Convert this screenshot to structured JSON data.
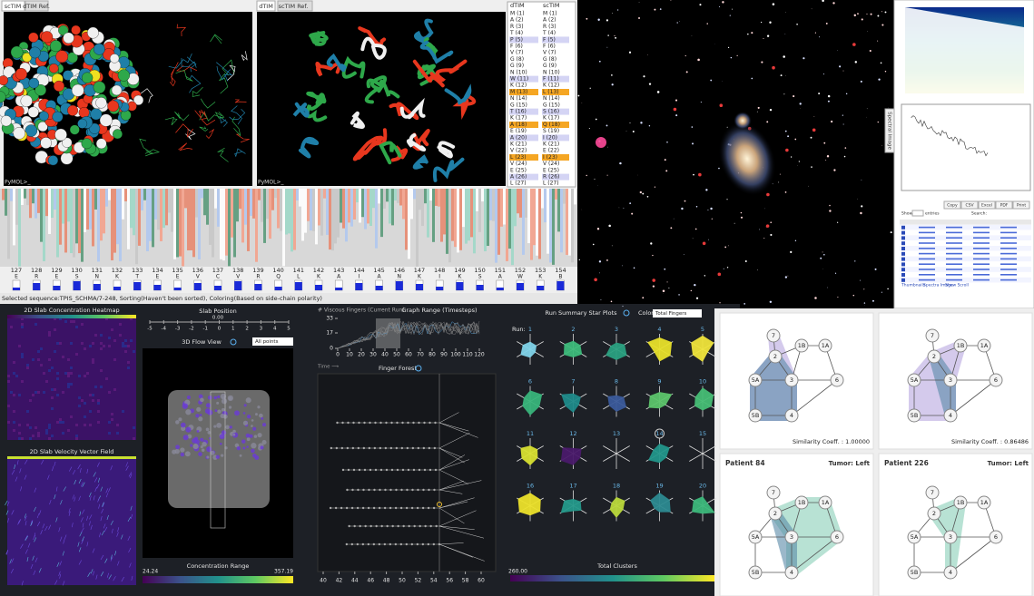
{
  "protein_viewer": {
    "tabs_left": [
      "scTIM",
      "dTIM Ref."
    ],
    "tabs_right": [
      "dTIM",
      "scTIM Ref."
    ],
    "prompt_left": "PyMOL>_",
    "prompt_right": "PyMOL>_",
    "list_headers": [
      "dTIM",
      "scTIM"
    ],
    "rows": [
      {
        "dtim": "M (1)",
        "sctim": "M (1)"
      },
      {
        "dtim": "A (2)",
        "sctim": "A (2)"
      },
      {
        "dtim": "R (3)",
        "sctim": "R (3)"
      },
      {
        "dtim": "T (4)",
        "sctim": "T (4)"
      },
      {
        "dtim": "P (5)",
        "sctim": "F (5)",
        "color": "#d4d4f4"
      },
      {
        "dtim": "F (6)",
        "sctim": "F (6)"
      },
      {
        "dtim": "V (7)",
        "sctim": "V (7)"
      },
      {
        "dtim": "G (8)",
        "sctim": "G (8)"
      },
      {
        "dtim": "G (9)",
        "sctim": "G (9)"
      },
      {
        "dtim": "N (10)",
        "sctim": "N (10)"
      },
      {
        "dtim": "W (11)",
        "sctim": "F (11)",
        "color": "#d4d4f4"
      },
      {
        "dtim": "K (12)",
        "sctim": "K (12)"
      },
      {
        "dtim": "M (13)",
        "sctim": "L (13)",
        "color": "#f5a623"
      },
      {
        "dtim": "N (14)",
        "sctim": "N (14)"
      },
      {
        "dtim": "G (15)",
        "sctim": "G (15)"
      },
      {
        "dtim": "T (16)",
        "sctim": "S (16)",
        "color": "#d4d4f4"
      },
      {
        "dtim": "K (17)",
        "sctim": "K (17)"
      },
      {
        "dtim": "A (18)",
        "sctim": "Q (18)",
        "color": "#f5a623"
      },
      {
        "dtim": "E (19)",
        "sctim": "S (19)"
      },
      {
        "dtim": "A (20)",
        "sctim": "I (20)",
        "color": "#d4d4f4"
      },
      {
        "dtim": "K (21)",
        "sctim": "K (21)"
      },
      {
        "dtim": "V (22)",
        "sctim": "E (22)"
      },
      {
        "dtim": "L (23)",
        "sctim": "I (23)",
        "color": "#f5a623"
      },
      {
        "dtim": "V (24)",
        "sctim": "V (24)"
      },
      {
        "dtim": "E (25)",
        "sctim": "E (25)"
      },
      {
        "dtim": "A (26)",
        "sctim": "R (26)",
        "color": "#d4d4f4"
      },
      {
        "dtim": "L (27)",
        "sctim": "L (27)"
      }
    ],
    "residue_numbers": [
      127,
      128,
      129,
      130,
      131,
      132,
      133,
      134,
      135,
      136,
      137,
      138,
      139,
      140,
      141,
      142,
      143,
      144,
      145,
      146,
      147,
      148,
      149,
      150,
      151,
      152,
      153,
      154
    ],
    "residue_letters": [
      "E",
      "R",
      "E",
      "S",
      "N",
      "K",
      "T",
      "E",
      "E",
      "V",
      "C",
      "V",
      "R",
      "Q",
      "L",
      "K",
      "A",
      "I",
      "A",
      "N",
      "K",
      "I",
      "K",
      "S",
      "A",
      "W",
      "K",
      "B"
    ],
    "status": "Selected sequence:TPIS_SCHMA/7-248, Sorting(Haven't been sorted), Coloring(Based on side-chain polarity)"
  },
  "spectra_panel": {
    "side_tab": "Spectral Image",
    "buttons": [
      "Copy",
      "CSV",
      "Excel",
      "PDF",
      "Print"
    ],
    "show": "Show",
    "entries": "entries",
    "search": "Search:",
    "links": [
      "Thumbnails",
      "Spectra Image",
      "Show Scroll"
    ]
  },
  "flow_dashboard": {
    "heatmap_title": "2D Slab Concentration Heatmap",
    "vector_title": "2D Slab Velocity Vector Field",
    "slab_title": "Slab Position",
    "slab_value": "0.00",
    "slab_ticks": [
      -5,
      -4,
      -3,
      -2,
      -1,
      0,
      1,
      2,
      3,
      4,
      5
    ],
    "flow_title": "3D Flow View",
    "points_select": "All points",
    "conc_title": "Concentration Range",
    "conc_min": "24.24",
    "conc_max": "357.19",
    "fingers_title": "# Viscous Fingers (Current Run)",
    "range_title": "Graph Range (Timesteps)",
    "fingers_yticks": [
      0,
      17,
      33
    ],
    "fingers_xticks": [
      0,
      10,
      20,
      30,
      40,
      50,
      60,
      70,
      80,
      90,
      100,
      110,
      120
    ],
    "time_label": "Time ⟶",
    "forest_title": "Finger Forest",
    "forest_xticks": [
      40,
      42,
      44,
      46,
      48,
      50,
      52,
      54,
      56,
      58,
      60
    ],
    "star_title": "Run Summary Star Plots",
    "color_label": "Color",
    "color_select": "Total Fingers",
    "run_label": "Run:",
    "runs": [
      {
        "label": "1",
        "color": "#7fd3e8"
      },
      {
        "label": "2",
        "color": "#3dbb7a"
      },
      {
        "label": "3",
        "color": "#2aa07f"
      },
      {
        "label": "4",
        "color": "#e8e02a"
      },
      {
        "label": "5",
        "color": "#efe43a"
      },
      {
        "label": "6",
        "color": "#38b47a"
      },
      {
        "label": "7",
        "color": "#1f8a89"
      },
      {
        "label": "8",
        "color": "#3a5a9a"
      },
      {
        "label": "9",
        "color": "#5cc46a"
      },
      {
        "label": "10",
        "color": "#46bd74"
      },
      {
        "label": "11",
        "color": "#d8e030"
      },
      {
        "label": "12",
        "color": "#4a1a6a"
      },
      {
        "label": "13"
      },
      {
        "label": "14",
        "color": "#22968a",
        "selected": true
      },
      {
        "label": "15"
      },
      {
        "label": "16",
        "color": "#ece22a"
      },
      {
        "label": "17",
        "color": "#24998a"
      },
      {
        "label": "18",
        "color": "#b9d83a"
      },
      {
        "label": "19",
        "color": "#2c8a90"
      },
      {
        "label": "20",
        "color": "#3cb87a"
      }
    ],
    "clusters_title": "Total Clusters",
    "clusters_min": "260.00"
  },
  "graph_panels": [
    {
      "similarity": "Similarity Coeff. : 1.00000"
    },
    {
      "similarity": "Similarity Coeff. : 0.86486"
    },
    {
      "patient": "Patient 84",
      "tumor": "Tumor: Left"
    },
    {
      "patient": "Patient 226",
      "tumor": "Tumor: Left"
    }
  ],
  "graph_nodes": [
    "7",
    "1B",
    "1A",
    "2",
    "5A",
    "3",
    "6",
    "5B",
    "4"
  ]
}
